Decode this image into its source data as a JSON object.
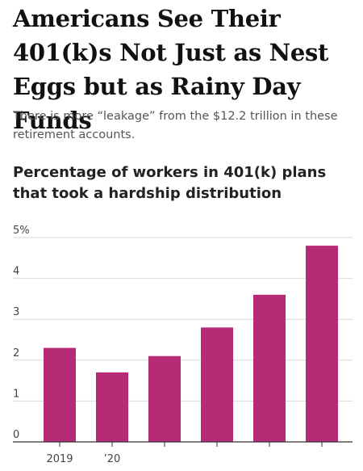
{
  "headline": "Americans See Their 401(k)s Not Just as Nest Eggs but as Rainy Day Funds",
  "subheadline": "There is more “leakage” from the $12.2 trillion in these retirement accounts.",
  "chart_data": {
    "type": "bar",
    "title": "Percentage of workers in 401(k) plans that took a hardship distribution",
    "categories": [
      "2019",
      "’20",
      "",
      "",
      "",
      ""
    ],
    "values": [
      2.3,
      1.7,
      2.1,
      2.8,
      3.6,
      4.8
    ],
    "ylim": [
      0,
      5
    ],
    "yticks": [
      0,
      1,
      2,
      3,
      4,
      5
    ],
    "ytick_labels": [
      "0",
      "1",
      "2",
      "3",
      "4",
      "5%"
    ],
    "xlabel": "",
    "ylabel": "",
    "grid": true,
    "bar_color": "#b72a76"
  }
}
